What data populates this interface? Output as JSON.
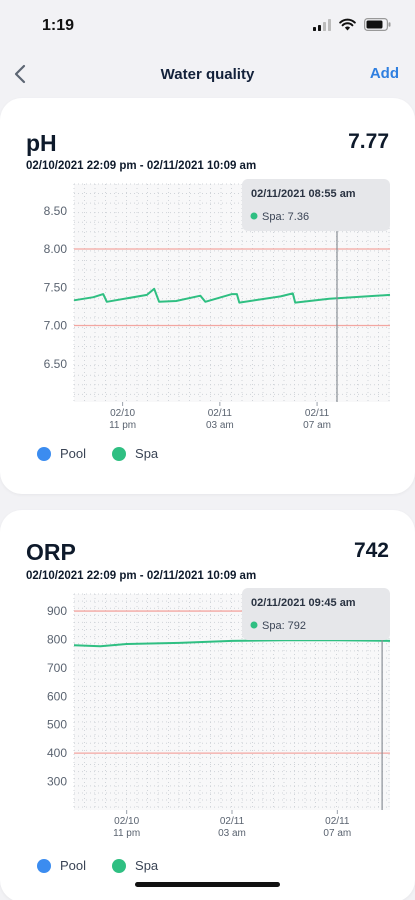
{
  "status_bar": {
    "time": "1:19"
  },
  "nav": {
    "title": "Water quality",
    "add_label": "Add"
  },
  "colors": {
    "pool": "#3b8cf0",
    "spa": "#2fbf82",
    "limit_line": "#f3a6a1",
    "accent": "#2f7fe0"
  },
  "legend": {
    "pool": "Pool",
    "spa": "Spa"
  },
  "cards": [
    {
      "title": "pH",
      "value": "7.77",
      "range": "02/10/2021 22:09 pm - 02/11/2021 10:09 am",
      "tooltip": {
        "time": "02/11/2021 08:55 am",
        "series_value": "Spa: 7.36"
      }
    },
    {
      "title": "ORP",
      "value": "742",
      "range": "02/10/2021 22:09 pm - 02/11/2021 10:09 am",
      "tooltip": {
        "time": "02/11/2021 09:45 am",
        "series_value": "Spa: 792"
      }
    }
  ],
  "chart_data": [
    {
      "type": "line",
      "title": "pH",
      "x_ticks": [
        {
          "x": 2.0,
          "line1": "02/10",
          "line2": "11 pm"
        },
        {
          "x": 6.0,
          "line1": "02/11",
          "line2": "03 am"
        },
        {
          "x": 10.0,
          "line1": "02/11",
          "line2": "07 am"
        }
      ],
      "xlim": [
        0.0,
        13.0
      ],
      "y_ticks": [
        "8.50",
        "8.00",
        "7.50",
        "7.00",
        "6.50"
      ],
      "y_tick_values": [
        8.5,
        8.0,
        7.5,
        7.0,
        6.5
      ],
      "ylim": [
        6.0,
        8.85
      ],
      "limit_lines": [
        8.0,
        7.0
      ],
      "cursor_x": 10.82,
      "series": [
        {
          "name": "Spa",
          "x": [
            0.0,
            0.8,
            1.2,
            1.35,
            3.0,
            3.3,
            3.5,
            4.2,
            5.2,
            5.4,
            6.5,
            6.7,
            6.8,
            8.5,
            9.0,
            9.1,
            10.5,
            13.0
          ],
          "values": [
            7.33,
            7.37,
            7.41,
            7.31,
            7.4,
            7.48,
            7.31,
            7.32,
            7.39,
            7.31,
            7.41,
            7.41,
            7.3,
            7.38,
            7.42,
            7.3,
            7.35,
            7.4
          ]
        }
      ]
    },
    {
      "type": "line",
      "title": "ORP",
      "x_ticks": [
        {
          "x": 2.0,
          "line1": "02/10",
          "line2": "11 pm"
        },
        {
          "x": 6.0,
          "line1": "02/11",
          "line2": "03 am"
        },
        {
          "x": 10.0,
          "line1": "02/11",
          "line2": "07 am"
        }
      ],
      "xlim": [
        0.0,
        12.0
      ],
      "y_ticks": [
        "900",
        "800",
        "700",
        "600",
        "500",
        "400",
        "300"
      ],
      "y_tick_values": [
        900,
        800,
        700,
        600,
        500,
        400,
        300
      ],
      "ylim": [
        200,
        960
      ],
      "limit_lines": [
        900,
        400
      ],
      "cursor_x": 11.7,
      "series": [
        {
          "name": "Spa",
          "x": [
            0.0,
            1.0,
            2.0,
            4.0,
            6.0,
            8.0,
            10.0,
            12.0
          ],
          "values": [
            780,
            776,
            784,
            788,
            795,
            797,
            797,
            795
          ]
        }
      ]
    }
  ]
}
